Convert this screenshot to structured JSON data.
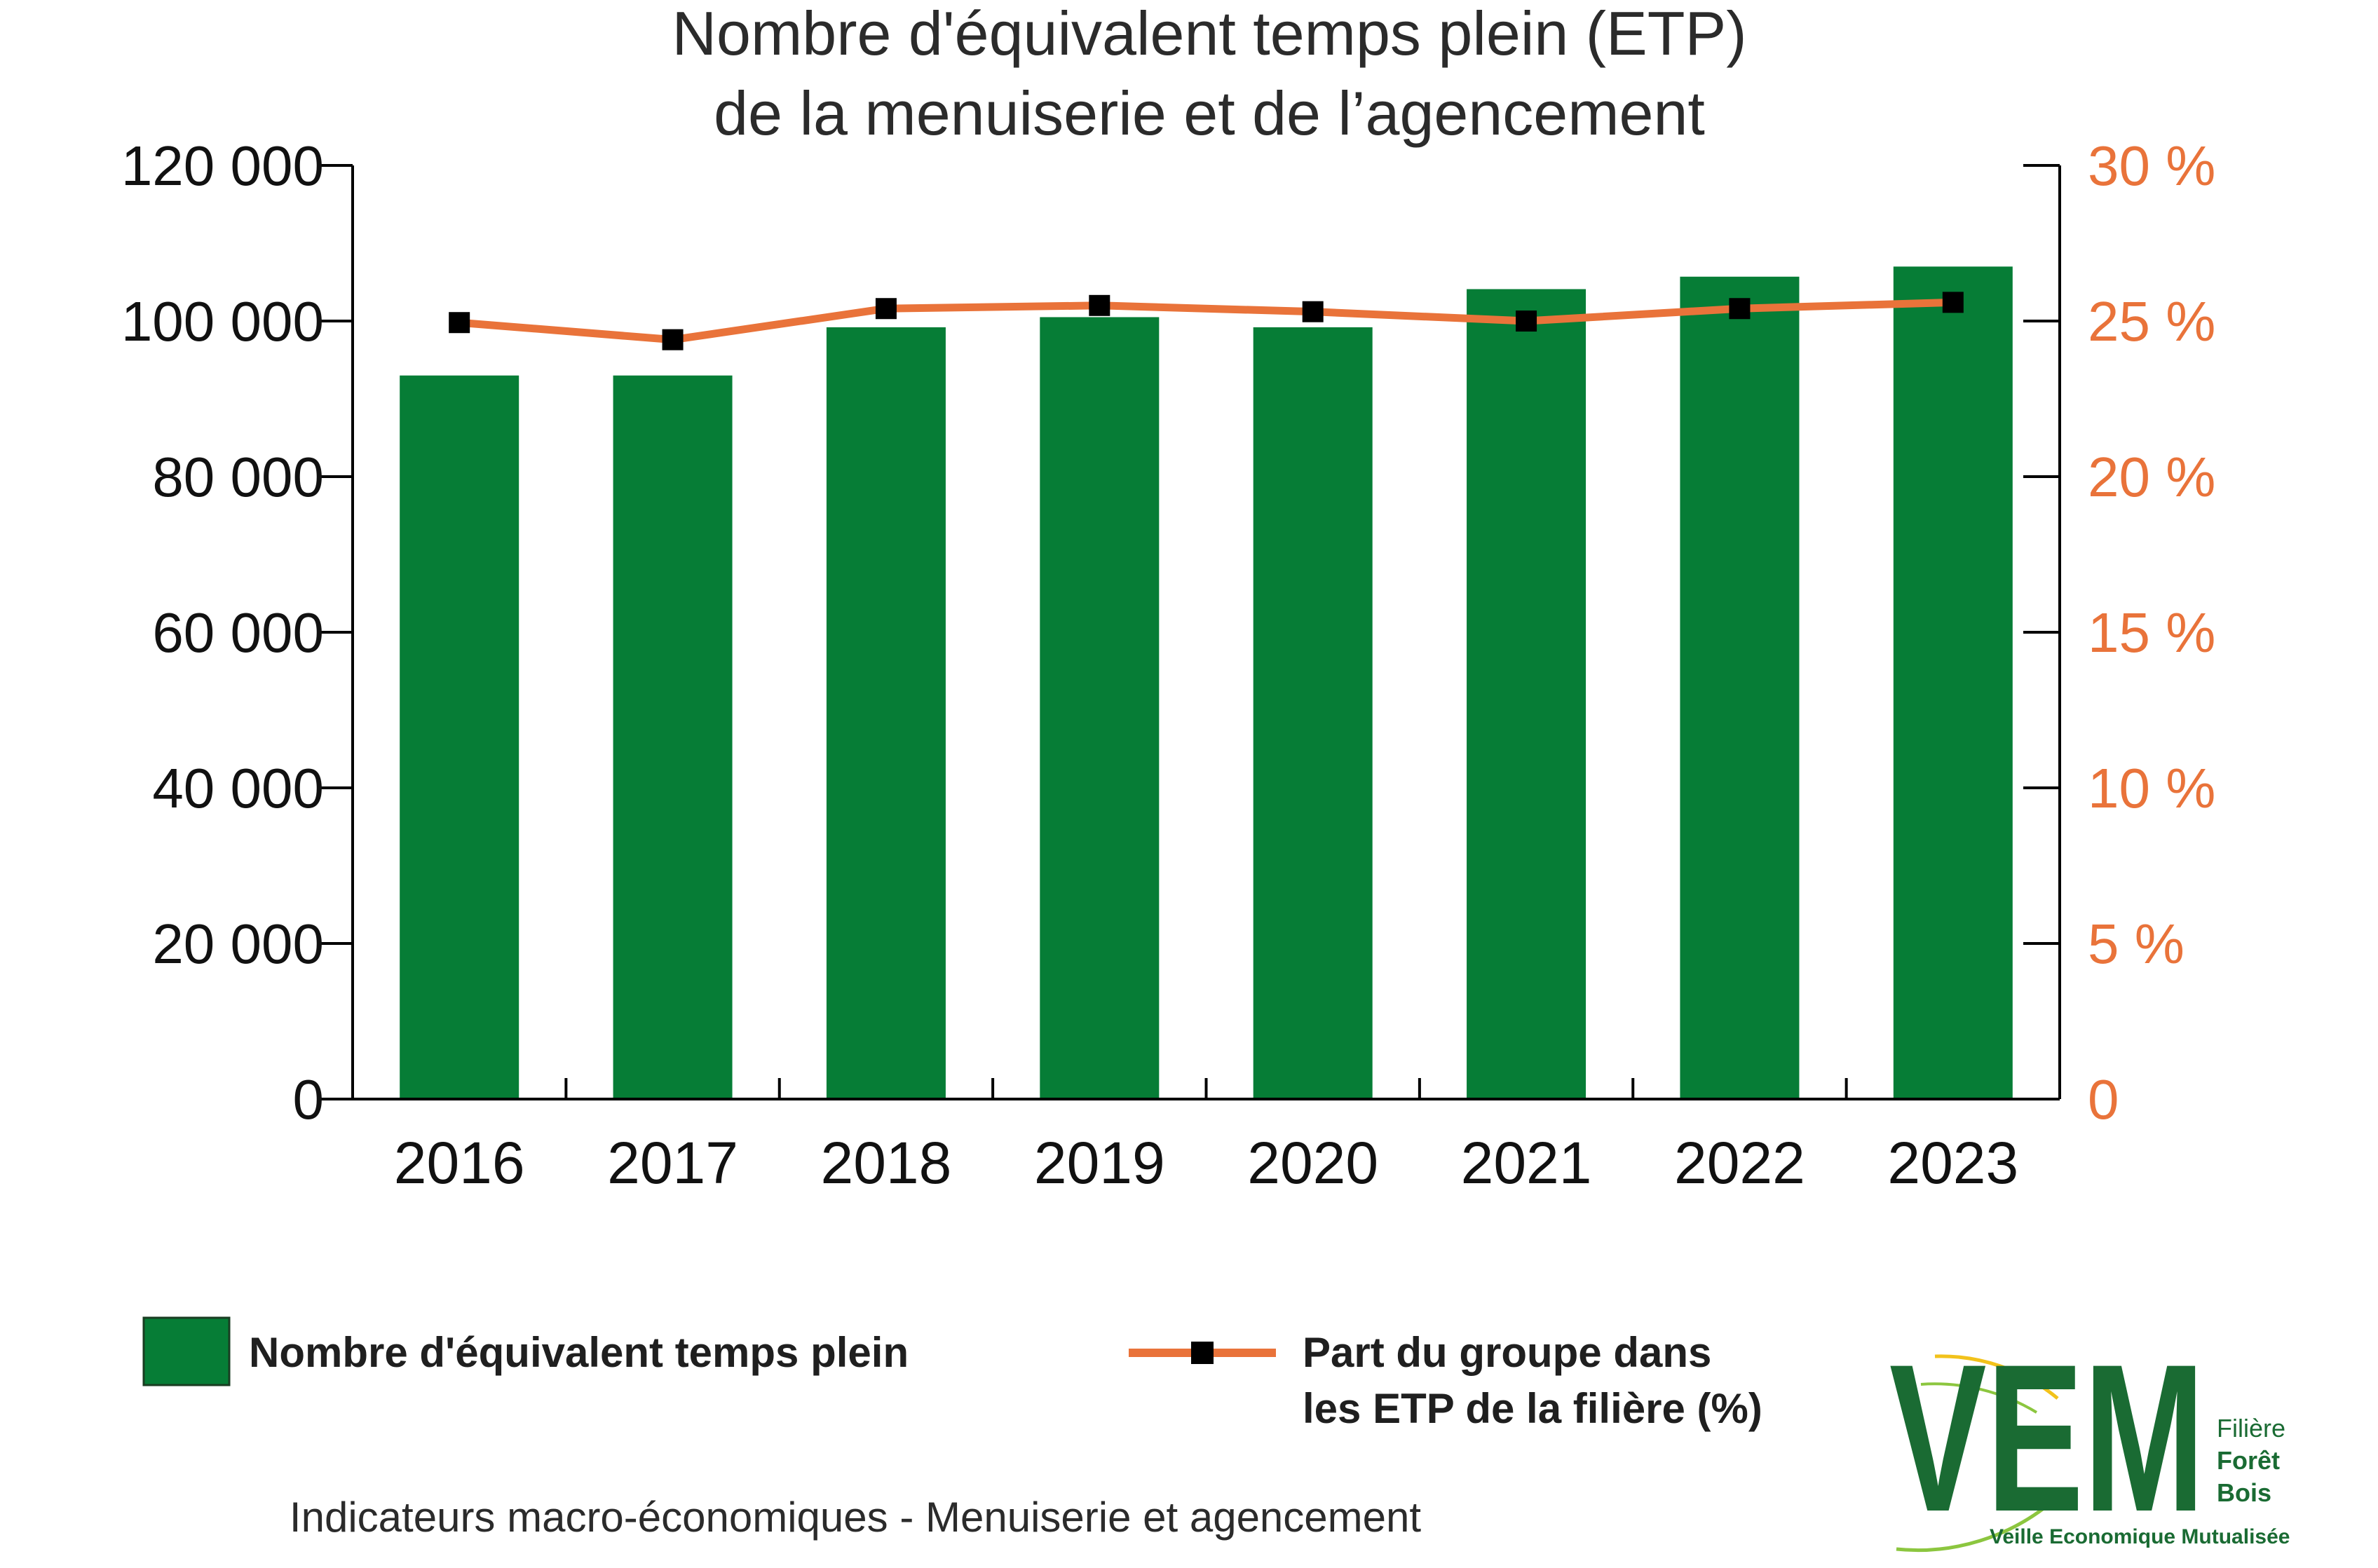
{
  "chart_data": {
    "type": "bar",
    "title": [
      "Nombre d'équivalent temps plein (ETP)",
      "de la menuiserie et de l’agencement"
    ],
    "categories": [
      "2016",
      "2017",
      "2018",
      "2019",
      "2020",
      "2021",
      "2022",
      "2023"
    ],
    "series": [
      {
        "name": "Nombre d'équivalent temps plein",
        "type": "bar",
        "axis": "left",
        "color": "#067d36",
        "values": [
          93000,
          93000,
          99200,
          100500,
          99200,
          104100,
          105700,
          107000
        ]
      },
      {
        "name": "Part du groupe dans les ETP de la filière  (%)",
        "type": "line",
        "axis": "right",
        "color": "#e9733a",
        "marker_color": "#000000",
        "values": [
          24.95,
          24.4,
          25.4,
          25.5,
          25.3,
          25.0,
          25.4,
          25.6
        ]
      }
    ],
    "y_left": {
      "ylim": [
        0,
        120000
      ],
      "ticks": [
        0,
        20000,
        40000,
        60000,
        80000,
        100000,
        120000
      ],
      "tick_labels": [
        "0",
        "20 000",
        "40 000",
        "60 000",
        "80 000",
        "100 000",
        "120 000"
      ]
    },
    "y_right": {
      "ylim": [
        0,
        30
      ],
      "ticks": [
        0,
        5,
        10,
        15,
        20,
        25,
        30
      ],
      "tick_labels": [
        "0",
        "5 %",
        "10 %",
        "15 %",
        "20 %",
        "25 %",
        "30 %"
      ],
      "color": "#e9733a"
    },
    "grid": false
  },
  "legend": {
    "bar_label": "Nombre d'équivalent temps plein",
    "line_label_1": "Part du groupe dans",
    "line_label_2": "les ETP de la filière  (%)"
  },
  "footer": "Indicateurs macro-économiques - Menuiserie et agencement",
  "logo": {
    "letters": "VEM",
    "line1": "Filière",
    "line2": "Forêt",
    "line3": "Bois",
    "tagline": "Veille Economique Mutualisée"
  },
  "colors": {
    "bar": "#067d36",
    "line": "#e9733a",
    "right_axis_text": "#e9733a",
    "logo_green": "#1a6b33",
    "logo_yellow": "#f2c21b"
  }
}
